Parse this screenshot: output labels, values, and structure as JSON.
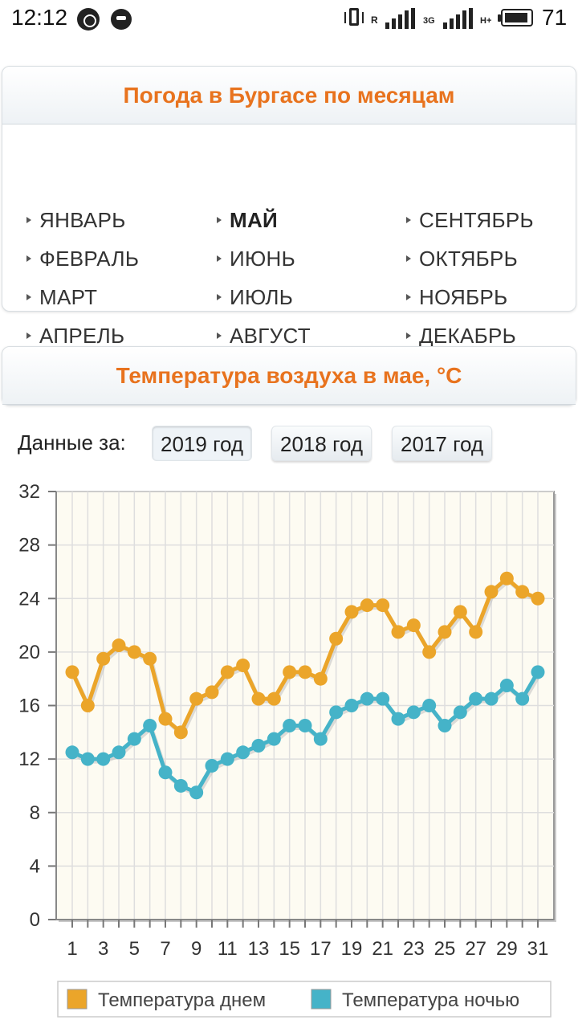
{
  "status_bar": {
    "time": "12:12",
    "roaming": "R",
    "network_1": "3G",
    "network_2": "H+",
    "battery": "71"
  },
  "months_panel": {
    "title": "Погода в Бургасе по месяцам",
    "months": [
      "ЯНВАРЬ",
      "ФЕВРАЛЬ",
      "МАРТ",
      "АПРЕЛЬ",
      "МАЙ",
      "ИЮНЬ",
      "ИЮЛЬ",
      "АВГУСТ",
      "СЕНТЯБРЬ",
      "ОКТЯБРЬ",
      "НОЯБРЬ",
      "ДЕКАБРЬ"
    ],
    "active_month": "МАЙ"
  },
  "temp_panel": {
    "title": "Температура воздуха в мае, °C"
  },
  "year_selector": {
    "label": "Данные за:",
    "years": [
      "2019 год",
      "2018 год",
      "2017 год"
    ],
    "selected": "2019 год"
  },
  "colors": {
    "accent": "#e8731e",
    "day": "#eba52a",
    "night": "#45b3c8"
  },
  "chart_data": {
    "type": "line",
    "x": [
      1,
      2,
      3,
      4,
      5,
      6,
      7,
      8,
      9,
      10,
      11,
      12,
      13,
      14,
      15,
      16,
      17,
      18,
      19,
      20,
      21,
      22,
      23,
      24,
      25,
      26,
      27,
      28,
      29,
      30,
      31
    ],
    "x_tick_labels": [
      "1",
      "3",
      "5",
      "7",
      "9",
      "11",
      "13",
      "15",
      "17",
      "19",
      "21",
      "23",
      "25",
      "27",
      "29",
      "31"
    ],
    "ylim": [
      0,
      32
    ],
    "y_ticks": [
      0,
      4,
      8,
      12,
      16,
      20,
      24,
      28,
      32
    ],
    "grid": true,
    "legend_position": "bottom",
    "series": [
      {
        "name": "Температура днем",
        "color": "#eba52a",
        "values": [
          18.5,
          16,
          19.5,
          20.5,
          20,
          19.5,
          15,
          14,
          16.5,
          17,
          18.5,
          19,
          16.5,
          16.5,
          18.5,
          18.5,
          18,
          21,
          23,
          23.5,
          23.5,
          21.5,
          22,
          20,
          21.5,
          23,
          21.5,
          24.5,
          25.5,
          24.5,
          24
        ]
      },
      {
        "name": "Температура ночью",
        "color": "#45b3c8",
        "values": [
          12.5,
          12,
          12,
          12.5,
          13.5,
          14.5,
          11,
          10,
          9.5,
          11.5,
          12,
          12.5,
          13,
          13.5,
          14.5,
          14.5,
          13.5,
          15.5,
          16,
          16.5,
          16.5,
          15,
          15.5,
          16,
          14.5,
          15.5,
          16.5,
          16.5,
          17.5,
          16.5,
          18.5
        ]
      }
    ]
  }
}
